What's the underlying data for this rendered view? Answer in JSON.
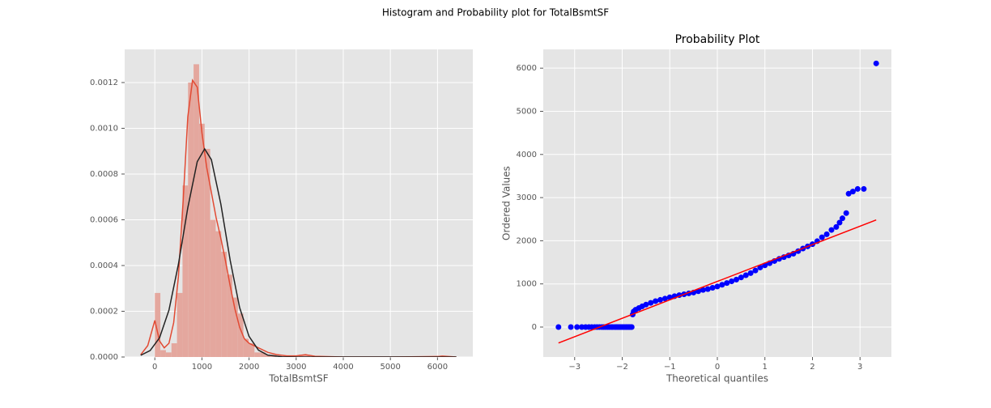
{
  "title": "Histogram and Probability plot for TotalBsmtSF",
  "chart_data": [
    {
      "type": "histogram",
      "xlabel": "TotalBsmtSF",
      "color": "#e4a79e",
      "grid": true,
      "bins": [
        0,
        117.5,
        235,
        352.5,
        470,
        587.5,
        705,
        822.5,
        940,
        1057.5,
        1175,
        1292.5,
        1410,
        1527.5,
        1645,
        1762.5,
        1880,
        1997.5,
        2115,
        2232.5,
        2350,
        2467.5,
        2585,
        2702.5,
        2820,
        2937.5,
        3055,
        3172.5,
        3290,
        3407.5,
        3525,
        3642.5,
        3760,
        3877.5,
        3995,
        4112.5,
        4230,
        4347.5,
        4465,
        4582.5,
        4700,
        4817.5,
        4935,
        5052.5,
        5170,
        5287.5,
        5405,
        5522.5,
        5640,
        5757.5,
        5875,
        5992.5,
        6110
      ],
      "values": [
        0.00028,
        3e-05,
        2e-05,
        6e-05,
        0.00028,
        0.00075,
        0.0012,
        0.00128,
        0.00102,
        0.00091,
        0.0006,
        0.00055,
        0.00046,
        0.00036,
        0.00026,
        0.00019,
        8e-05,
        6e-05,
        2e-05,
        2e-05,
        1e-05,
        1e-05,
        0,
        0,
        0,
        0,
        1e-05,
        1e-05,
        0,
        0,
        0,
        0,
        0,
        0,
        0,
        0,
        0,
        0,
        0,
        0,
        0,
        0,
        0,
        0,
        0,
        0,
        0,
        0,
        0,
        0,
        0,
        5e-06
      ],
      "series": [
        {
          "type": "line",
          "color": "#e24a33",
          "x": [
            -300,
            -150,
            0,
            100,
            200,
            300,
            400,
            500,
            600,
            700,
            800,
            900,
            1000,
            1100,
            1200,
            1300,
            1400,
            1500,
            1600,
            1700,
            1800,
            1900,
            2000,
            2200,
            2400,
            2600,
            2800,
            3000,
            3200,
            3400,
            4000,
            5000,
            6000,
            6100,
            6400
          ],
          "values": [
            1e-05,
            5e-05,
            0.00016,
            7e-05,
            4e-05,
            6e-05,
            0.00015,
            0.00035,
            0.00068,
            0.00105,
            0.00121,
            0.00118,
            0.00098,
            0.00083,
            0.00072,
            0.00061,
            0.00052,
            0.00042,
            0.00031,
            0.00021,
            0.00013,
            8e-05,
            6e-05,
            4e-05,
            2e-05,
            1e-05,
            5e-06,
            5e-06,
            1e-05,
            3e-06,
            0,
            0,
            2e-06,
            4e-06,
            0
          ]
        },
        {
          "type": "line",
          "color": "#222222",
          "x": [
            -300,
            -100,
            100,
            300,
            500,
            700,
            900,
            1057,
            1200,
            1400,
            1600,
            1800,
            2000,
            2200,
            2400,
            2700,
            3000,
            6400
          ],
          "values": [
            7.5e-06,
            2.8e-05,
            8.4e-05,
            0.000205,
            0.000405,
            0.000653,
            0.000854,
            0.00091,
            0.000863,
            0.00067,
            0.000422,
            0.000216,
            9e-05,
            3e-05,
            8e-06,
            1e-06,
            0,
            0
          ]
        }
      ],
      "xlim": [
        -640,
        6750
      ],
      "xticks": [
        0,
        1000,
        2000,
        3000,
        4000,
        5000,
        6000
      ],
      "ylim": [
        0,
        0.001345
      ],
      "yticks": [
        {
          "value": 0,
          "label": "0.0000"
        },
        0.0002,
        0.0004,
        0.0006,
        0.0008,
        {
          "value": 0.001,
          "label": "0.0010"
        },
        {
          "value": 0.0012,
          "label": "0.0012"
        }
      ]
    },
    {
      "type": "scatter",
      "title": "Probability Plot",
      "xlabel": "Theoretical quantiles",
      "ylabel": "Ordered Values",
      "grid": true,
      "series": [
        {
          "type": "scatter",
          "color": "#0000ff",
          "x": [
            -3.34,
            -3.08,
            -2.95,
            -2.85,
            -2.77,
            -2.7,
            -2.64,
            -2.58,
            -2.53,
            -2.48,
            -2.43,
            -2.39,
            -2.35,
            -2.31,
            -2.27,
            -2.23,
            -2.2,
            -2.16,
            -2.13,
            -2.1,
            -2.07,
            -2.04,
            -2.01,
            -1.98,
            -1.95,
            -1.92,
            -1.9,
            -1.87,
            -1.85,
            -1.82,
            -1.8,
            -1.78,
            -1.76,
            -1.72,
            -1.65,
            -1.58,
            -1.5,
            -1.4,
            -1.3,
            -1.2,
            -1.1,
            -1.0,
            -0.9,
            -0.8,
            -0.7,
            -0.6,
            -0.5,
            -0.4,
            -0.3,
            -0.2,
            -0.1,
            0,
            0.1,
            0.2,
            0.3,
            0.4,
            0.5,
            0.6,
            0.7,
            0.8,
            0.9,
            1.0,
            1.1,
            1.2,
            1.3,
            1.4,
            1.5,
            1.6,
            1.7,
            1.8,
            1.9,
            2.0,
            2.1,
            2.2,
            2.3,
            2.4,
            2.5,
            2.57,
            2.63,
            2.71,
            2.76,
            2.85,
            2.95,
            3.08,
            3.34
          ],
          "values": [
            0,
            0,
            0,
            0,
            0,
            0,
            0,
            0,
            0,
            0,
            0,
            0,
            0,
            0,
            0,
            0,
            0,
            0,
            0,
            0,
            0,
            0,
            0,
            0,
            0,
            0,
            0,
            0,
            0,
            0,
            0,
            290,
            360,
            400,
            440,
            480,
            520,
            560,
            600,
            630,
            660,
            690,
            715,
            740,
            760,
            780,
            800,
            830,
            860,
            880,
            910,
            940,
            980,
            1020,
            1060,
            1100,
            1150,
            1200,
            1250,
            1310,
            1380,
            1430,
            1480,
            1530,
            1580,
            1620,
            1660,
            1700,
            1760,
            1820,
            1870,
            1920,
            1990,
            2080,
            2150,
            2250,
            2320,
            2420,
            2520,
            2640,
            3090,
            3140,
            3200,
            3200,
            6110
          ]
        },
        {
          "type": "line",
          "color": "#ff0000",
          "x": [
            -3.34,
            3.34
          ],
          "values": [
            -369,
            2483
          ]
        }
      ],
      "xlim": [
        -3.66,
        3.66
      ],
      "xticks": [
        {
          "value": -3,
          "label": "−3"
        },
        {
          "value": -2,
          "label": "−2"
        },
        {
          "value": -1,
          "label": "−1"
        },
        0,
        1,
        2,
        3
      ],
      "ylim": [
        -694,
        6435
      ],
      "yticks": [
        0,
        1000,
        2000,
        3000,
        4000,
        5000,
        6000
      ]
    }
  ]
}
